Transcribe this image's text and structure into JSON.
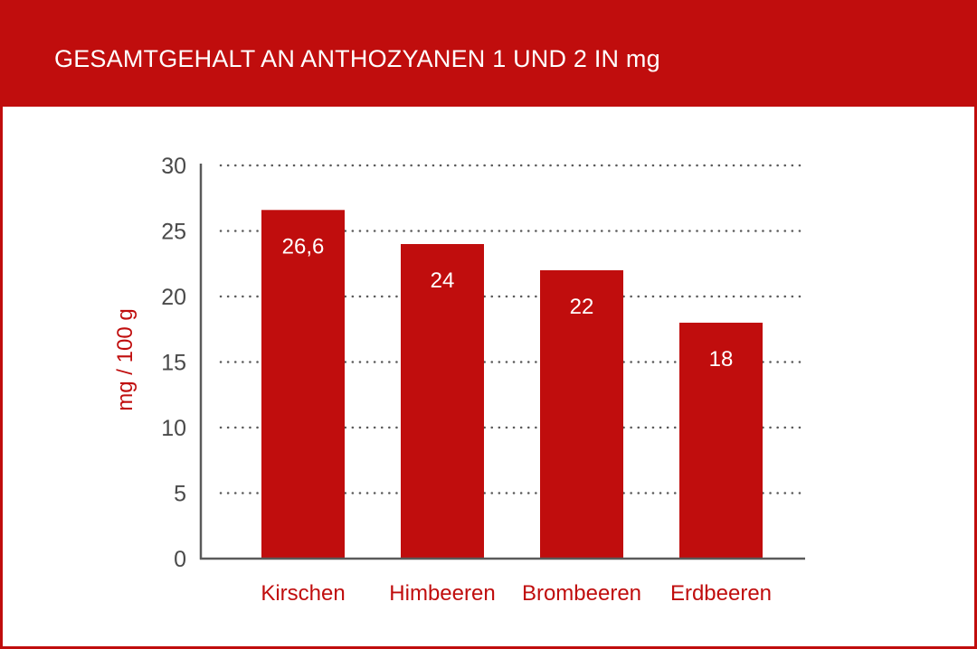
{
  "colors": {
    "accent": "#c00d0d",
    "axis": "#5a5a5a",
    "grid": "#5a5a5a",
    "tick_text": "#4a4a4a",
    "bar_label_text": "#ffffff"
  },
  "chart_data": {
    "type": "bar",
    "title": "GESAMTGEHALT AN ANTHOZYANEN 1 UND 2 IN mg",
    "xlabel": "",
    "ylabel": "mg / 100 g",
    "categories": [
      "Kirschen",
      "Himbeeren",
      "Brombeeren",
      "Erdbeeren"
    ],
    "values": [
      26.6,
      24,
      22,
      18
    ],
    "value_labels": [
      "26,6",
      "24",
      "22",
      "18"
    ],
    "ylim": [
      0,
      30
    ],
    "yticks": [
      0,
      5,
      10,
      15,
      20,
      25,
      30
    ],
    "grid": "horizontal dotted",
    "legend": "none"
  }
}
